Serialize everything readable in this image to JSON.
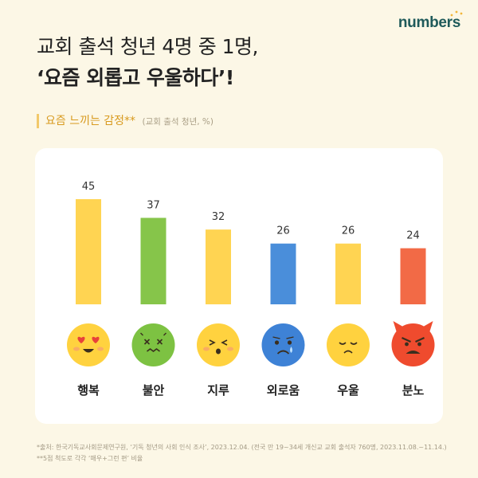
{
  "brand": "numbers",
  "header": {
    "title_line1": "교회 출석 청년 4명 중 1명,",
    "title_line2": "‘요즘 외롭고 우울하다’!"
  },
  "subtitle": {
    "label": "요즘 느끼는 감정**",
    "note": "(교회 출석 청년, %)"
  },
  "footnotes": [
    "*출처: 한국기독교사회문제연구원, ‘기독 청년의 사회 인식 조사’, 2023.12.04. (전국 만 19~34세 개신교 교회 출석자 760명, 2023.11.08.~11.14.)",
    "**5점 척도로 각각 ‘매우+그런 편’ 비율"
  ],
  "colors": {
    "yellow": "#FFD452",
    "green": "#86C54A",
    "blue": "#4A8EDA",
    "orange": "#F26A46",
    "face_yellow": "#FFD23F",
    "face_green": "#7DC242",
    "face_blue": "#3E82D6",
    "face_red": "#EF4B2E"
  },
  "chart_data": {
    "type": "bar",
    "categories": [
      "행복",
      "불안",
      "지루",
      "외로움",
      "우울",
      "분노"
    ],
    "values": [
      45,
      37,
      32,
      26,
      26,
      24
    ],
    "bar_colors": [
      "#FFD452",
      "#86C54A",
      "#FFD452",
      "#4A8EDA",
      "#FFD452",
      "#F26A46"
    ],
    "icons": [
      "heart-eyes-face",
      "anxious-green-face",
      "bored-face",
      "crying-blue-face",
      "sad-face",
      "angry-devil-face"
    ],
    "unit": "%",
    "ylim": [
      0,
      45
    ],
    "grid": false
  }
}
